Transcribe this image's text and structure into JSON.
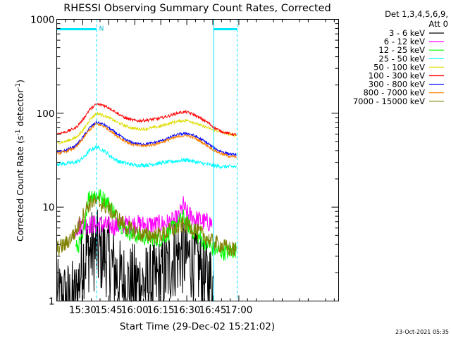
{
  "chart_data": {
    "type": "line",
    "title": "RHESSI Observing Summary Count Rates, Corrected",
    "xlabel": "Start Time (29-Dec-02 15:21:02)",
    "ylabel_main": "Corrected Count Rate (s",
    "ylabel_sup1": "-1",
    "ylabel_mid": " detector",
    "ylabel_sup2": "-1",
    "ylabel_end": ")",
    "y_scale": "log",
    "ylim": [
      1,
      1000
    ],
    "xlim_minutes": [
      15.03,
      177.5
    ],
    "x_ticks": [
      {
        "label": "15:30",
        "minutes": 30
      },
      {
        "label": "15:45",
        "minutes": 45
      },
      {
        "label": "16:00",
        "minutes": 60
      },
      {
        "label": "16:15",
        "minutes": 75
      },
      {
        "label": "16:30",
        "minutes": 90
      },
      {
        "label": "16:45",
        "minutes": 105
      },
      {
        "label": "17:00",
        "minutes": 120
      }
    ],
    "y_ticks": [
      {
        "label": "1000",
        "value": 1000
      },
      {
        "label": "100",
        "value": 100
      },
      {
        "label": "10",
        "value": 10
      },
      {
        "label": "1",
        "value": 1
      }
    ],
    "legend_header": [
      "Det 1,3,4,5,6,9,",
      "Att 0"
    ],
    "legend_position": "right",
    "night_marker": "N",
    "night_intervals_minutes": [
      [
        15.03,
        38
      ],
      [
        105.5,
        119
      ]
    ],
    "saa_lines_minutes": [
      15.03,
      38,
      105.5,
      119
    ],
    "series": [
      {
        "name": "3 - 6 keV",
        "color": "#000000",
        "t": [
          15,
          26,
          30,
          33,
          36,
          40,
          44,
          48,
          52,
          56,
          60,
          70,
          78,
          82,
          86,
          90,
          96,
          100,
          105.5
        ],
        "values": [
          1,
          1,
          2.8,
          3.3,
          3.5,
          3.3,
          3.0,
          2.2,
          1.6,
          1.5,
          1.5,
          1.5,
          2.0,
          2.8,
          3.2,
          3.0,
          2.5,
          1.8,
          1.5
        ]
      },
      {
        "name": "6 - 12 keV",
        "color": "#ff00ff",
        "t": [
          26,
          30,
          35,
          40,
          45,
          50,
          55,
          60,
          65,
          70,
          75,
          80,
          85,
          88,
          90,
          95,
          100,
          104.5
        ],
        "values": [
          6.0,
          6.5,
          6.5,
          6.5,
          6.3,
          6.3,
          6.5,
          6.6,
          6.5,
          6.5,
          6.6,
          6.8,
          7.5,
          10.5,
          8.5,
          7.5,
          7.0,
          6.8
        ]
      },
      {
        "name": "12 - 25 keV",
        "color": "#00ff00",
        "t": [
          26,
          30,
          33,
          36,
          40,
          44,
          48,
          52,
          56,
          60,
          64,
          68,
          72,
          76,
          80,
          84,
          88,
          92,
          96,
          100,
          106,
          112,
          118.7
        ],
        "values": [
          3.6,
          4.5,
          12.5,
          14.0,
          13.0,
          11.5,
          9.0,
          6.5,
          5.5,
          5.0,
          4.8,
          4.7,
          4.6,
          4.6,
          5.5,
          6.5,
          7.8,
          6.0,
          5.0,
          4.3,
          3.5,
          3.3,
          3.5
        ]
      },
      {
        "name": "25 - 50 keV",
        "color": "#00ffff",
        "t": [
          15,
          20,
          26,
          30,
          34,
          38,
          42,
          46,
          50,
          56,
          60,
          66,
          72,
          78,
          84,
          90,
          96,
          100,
          104,
          110,
          118.7
        ],
        "values": [
          29,
          29,
          30,
          33,
          40,
          44,
          40,
          35,
          31,
          29,
          28,
          28,
          29,
          30,
          31,
          32,
          30,
          29,
          28,
          27,
          27
        ]
      },
      {
        "name": "50 - 100 keV",
        "color": "#dddd00",
        "t": [
          15,
          20,
          26,
          30,
          34,
          38,
          42,
          46,
          50,
          54,
          58,
          62,
          66,
          70,
          74,
          78,
          82,
          86,
          90,
          94,
          98,
          102,
          106,
          110,
          114,
          118.7
        ],
        "values": [
          48,
          50,
          55,
          65,
          85,
          100,
          95,
          88,
          80,
          74,
          70,
          68,
          68,
          70,
          72,
          76,
          80,
          83,
          84,
          80,
          74,
          70,
          66,
          63,
          60,
          58
        ]
      },
      {
        "name": "100 - 300 keV",
        "color": "#ff0000",
        "t": [
          15,
          20,
          26,
          30,
          34,
          38,
          42,
          46,
          50,
          54,
          58,
          62,
          66,
          70,
          74,
          78,
          82,
          86,
          90,
          94,
          98,
          102,
          106,
          110,
          114,
          118.7
        ],
        "values": [
          60,
          63,
          70,
          85,
          110,
          125,
          122,
          112,
          100,
          90,
          85,
          83,
          84,
          86,
          88,
          92,
          97,
          102,
          103,
          97,
          88,
          80,
          70,
          64,
          61,
          59
        ]
      },
      {
        "name": "300 - 800 keV",
        "color": "#0000ff",
        "t": [
          15,
          20,
          26,
          30,
          34,
          38,
          42,
          46,
          50,
          54,
          58,
          62,
          66,
          70,
          74,
          78,
          82,
          86,
          90,
          94,
          98,
          102,
          106,
          110,
          114,
          118.7
        ],
        "values": [
          38,
          40,
          45,
          55,
          70,
          80,
          76,
          68,
          60,
          53,
          49,
          47,
          47,
          48,
          50,
          53,
          57,
          60,
          61,
          58,
          53,
          48,
          42,
          39,
          37,
          36
        ]
      },
      {
        "name": "800 - 7000 keV",
        "color": "#ff8000",
        "t": [
          15,
          20,
          26,
          30,
          34,
          38,
          42,
          46,
          50,
          54,
          58,
          62,
          66,
          70,
          74,
          78,
          82,
          86,
          90,
          94,
          98,
          102,
          106,
          110,
          114,
          118.7
        ],
        "values": [
          37,
          39,
          43,
          53,
          67,
          77,
          73,
          65,
          57,
          51,
          47,
          45,
          45,
          46,
          48,
          51,
          54,
          57,
          58,
          55,
          50,
          45,
          40,
          37,
          35,
          34
        ]
      },
      {
        "name": "7000 - 15000 keV",
        "color": "#808000",
        "t": [
          15,
          20,
          26,
          30,
          33,
          36,
          40,
          44,
          48,
          52,
          56,
          60,
          66,
          72,
          78,
          84,
          88,
          92,
          96,
          100,
          104,
          110,
          114,
          118.7
        ],
        "values": [
          3.6,
          4.0,
          5.5,
          8.0,
          10.5,
          11.5,
          11.0,
          10.0,
          8.5,
          7.0,
          6.0,
          5.5,
          5.0,
          5.0,
          5.3,
          6.0,
          6.5,
          6.2,
          5.5,
          5.0,
          4.3,
          3.9,
          3.6,
          3.5
        ]
      }
    ]
  },
  "timestamp": "23-Oct-2021 05:35"
}
